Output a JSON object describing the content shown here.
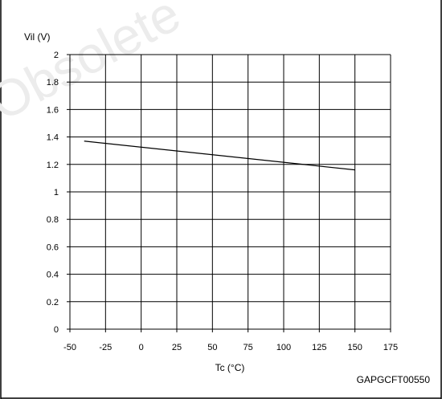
{
  "chart_data": {
    "type": "line",
    "ylabel": "Vil (V)",
    "xlabel": "Tc (°C)",
    "x_ticks": [
      -50,
      -25,
      0,
      25,
      50,
      75,
      100,
      125,
      150,
      175
    ],
    "y_ticks": [
      0,
      0.2,
      0.4,
      0.6,
      0.8,
      1,
      1.2,
      1.4,
      1.6,
      1.8,
      2
    ],
    "xlim": [
      -50,
      175
    ],
    "ylim": [
      0,
      2
    ],
    "grid": true,
    "series": [
      {
        "x": [
          -40,
          150
        ],
        "y": [
          1.37,
          1.16
        ]
      }
    ]
  },
  "figure_code": "GAPGCFT00550",
  "watermark": "Obsolete",
  "colors": {
    "line": "#000000",
    "grid": "#000000",
    "frame": "#000000",
    "watermark": "#ececec"
  }
}
